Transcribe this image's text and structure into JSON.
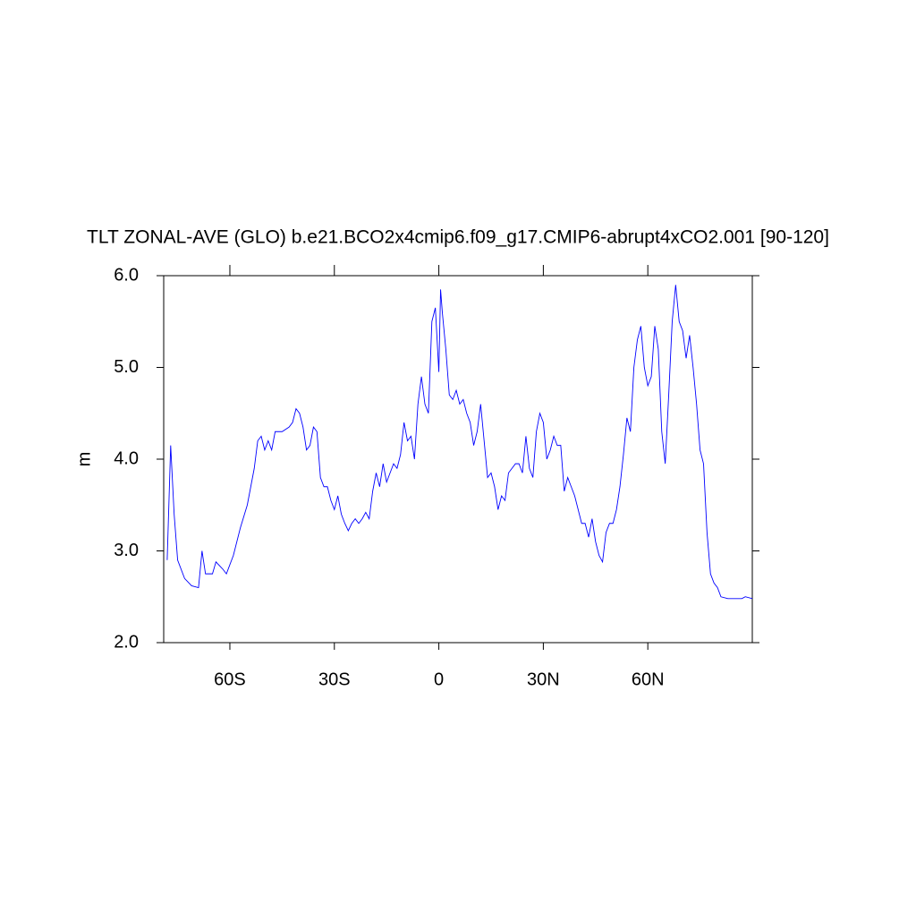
{
  "chart_data": {
    "type": "line",
    "title": "TLT ZONAL-AVE (GLO) b.e21.BCO2x4cmip6.f09_g17.CMIP6-abrupt4xCO2.001 [90-120]",
    "y_label": "m",
    "xlim": [
      -79,
      90
    ],
    "ylim": [
      2,
      6
    ],
    "xticks": [
      {
        "value": -60,
        "label": "60S"
      },
      {
        "value": -30,
        "label": "30S"
      },
      {
        "value": 0,
        "label": "0"
      },
      {
        "value": 30,
        "label": "30N"
      },
      {
        "value": 60,
        "label": "60N"
      }
    ],
    "yticks": [
      {
        "value": 2,
        "label": "2.0"
      },
      {
        "value": 3,
        "label": "3.0"
      },
      {
        "value": 4,
        "label": "4.0"
      },
      {
        "value": 5,
        "label": "5.0"
      },
      {
        "value": 6,
        "label": "6.0"
      }
    ],
    "series": [
      {
        "color": "#0000ff",
        "x": [
          -78,
          -77,
          -76,
          -75,
          -73,
          -71,
          -69,
          -68,
          -67,
          -65,
          -64,
          -62,
          -61,
          -59,
          -57,
          -55,
          -53,
          -52,
          -51,
          -50,
          -49,
          -48,
          -47,
          -45,
          -43,
          -42,
          -41,
          -40,
          -39,
          -38,
          -37,
          -36,
          -35,
          -34,
          -33,
          -32,
          -31,
          -30,
          -29,
          -28,
          -27,
          -26,
          -25,
          -24,
          -23,
          -22,
          -21,
          -20,
          -19,
          -18,
          -17,
          -16,
          -15,
          -14,
          -13,
          -12,
          -11,
          -10,
          -9,
          -8,
          -7,
          -6,
          -5,
          -4,
          -3,
          -2,
          -1,
          0,
          0.5,
          1,
          2,
          3,
          4,
          5,
          6,
          7,
          8,
          9,
          10,
          11,
          12,
          13,
          14,
          15,
          16,
          17,
          18,
          19,
          20,
          21,
          22,
          23,
          24,
          25,
          26,
          27,
          28,
          29,
          30,
          31,
          32,
          33,
          34,
          35,
          36,
          37,
          38,
          39,
          40,
          41,
          42,
          43,
          44,
          45,
          46,
          47,
          48,
          49,
          50,
          51,
          52,
          53,
          54,
          55,
          56,
          57,
          58,
          59,
          60,
          61,
          62,
          63,
          64,
          65,
          66,
          67,
          68,
          69,
          70,
          71,
          72,
          73,
          74,
          75,
          76,
          77,
          78,
          79,
          80,
          81,
          83,
          85,
          87,
          88,
          90
        ],
        "values": [
          2.9,
          4.15,
          3.4,
          2.9,
          2.7,
          2.62,
          2.6,
          3.0,
          2.75,
          2.75,
          2.88,
          2.8,
          2.75,
          2.95,
          3.25,
          3.5,
          3.9,
          4.2,
          4.25,
          4.1,
          4.2,
          4.1,
          4.3,
          4.3,
          4.35,
          4.4,
          4.55,
          4.5,
          4.35,
          4.1,
          4.15,
          4.35,
          4.3,
          3.8,
          3.7,
          3.7,
          3.55,
          3.45,
          3.6,
          3.4,
          3.3,
          3.22,
          3.3,
          3.35,
          3.3,
          3.35,
          3.42,
          3.35,
          3.65,
          3.85,
          3.7,
          3.95,
          3.75,
          3.85,
          3.95,
          3.9,
          4.05,
          4.4,
          4.2,
          4.25,
          4.0,
          4.6,
          4.9,
          4.6,
          4.5,
          5.5,
          5.65,
          4.95,
          5.85,
          5.6,
          5.2,
          4.7,
          4.65,
          4.75,
          4.6,
          4.65,
          4.5,
          4.4,
          4.15,
          4.3,
          4.6,
          4.2,
          3.8,
          3.85,
          3.7,
          3.45,
          3.6,
          3.55,
          3.85,
          3.9,
          3.95,
          3.95,
          3.85,
          4.25,
          3.9,
          3.8,
          4.3,
          4.5,
          4.4,
          4.0,
          4.1,
          4.25,
          4.15,
          4.15,
          3.65,
          3.8,
          3.7,
          3.6,
          3.45,
          3.3,
          3.3,
          3.15,
          3.35,
          3.1,
          2.95,
          2.88,
          3.2,
          3.3,
          3.3,
          3.45,
          3.7,
          4.05,
          4.45,
          4.3,
          5.0,
          5.3,
          5.45,
          5.0,
          4.8,
          4.9,
          5.45,
          5.2,
          4.3,
          3.95,
          4.7,
          5.5,
          5.9,
          5.5,
          5.4,
          5.1,
          5.35,
          5.0,
          4.6,
          4.1,
          3.95,
          3.2,
          2.75,
          2.65,
          2.6,
          2.5,
          2.48,
          2.48,
          2.48,
          2.5,
          2.48
        ]
      }
    ]
  }
}
